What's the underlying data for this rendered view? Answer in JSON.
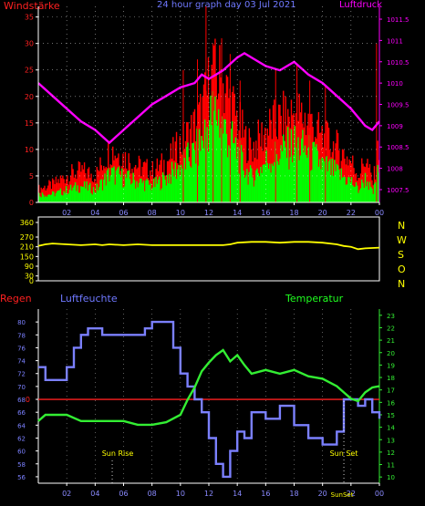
{
  "colors": {
    "wind": "#ff0000",
    "gust_bg": "#ff0000",
    "wind_avg": "#00ff00",
    "pressure": "#ff00ff",
    "direction": "#ffff00",
    "humidity": "#7b80ff",
    "temperature": "#33ee33",
    "rain": "#ff2020",
    "axis": "#ffffff",
    "grid": "#ffffff",
    "label_red": "#ff2020",
    "label_blue": "#6f78ff",
    "label_yellow": "#ffff00"
  },
  "header": {
    "left_title": "Windstärke",
    "center_title": "24 hour graph day  03 Jul 2021",
    "right_title": "Luftdruck"
  },
  "x_ticks": [
    "02",
    "04",
    "06",
    "08",
    "10",
    "12",
    "14",
    "16",
    "18",
    "20",
    "22",
    "00"
  ],
  "chart_data": [
    {
      "type": "bar",
      "name": "wind-pressure",
      "x_range": [
        0,
        24
      ],
      "ylim_left": [
        0,
        37
      ],
      "ylim_right": [
        1007.2,
        1011.8
      ],
      "left_ticks": [
        0,
        5,
        10,
        15,
        20,
        25,
        30,
        35
      ],
      "right_ticks": [
        1007.5,
        1008,
        1008.5,
        1009,
        1009.5,
        1010,
        1010.5,
        1011,
        1011.5
      ],
      "wind_gust_envelope": {
        "x": [
          0,
          1,
          2,
          3,
          4,
          4.5,
          5,
          6,
          7,
          8,
          9,
          10,
          11,
          11.5,
          12,
          12.5,
          13,
          13.5,
          14,
          14.5,
          15,
          16,
          17,
          18,
          19,
          20,
          21,
          22,
          22.5,
          23,
          23.5,
          24
        ],
        "y": [
          3,
          4,
          6,
          7,
          6,
          9,
          12,
          10,
          8,
          7,
          9,
          13,
          17,
          20,
          26,
          28,
          26,
          22,
          18,
          14,
          12,
          16,
          18,
          20,
          18,
          14,
          12,
          9,
          6,
          10,
          4,
          14
        ]
      },
      "wind_avg_envelope": {
        "x": [
          0,
          1,
          2,
          3,
          4,
          4.5,
          5,
          6,
          7,
          8,
          9,
          10,
          11,
          11.5,
          12,
          12.5,
          13,
          13.5,
          14,
          14.5,
          15,
          16,
          17,
          18,
          19,
          20,
          21,
          22,
          22.5,
          23,
          23.5,
          24
        ],
        "y": [
          2,
          2,
          3,
          4,
          3,
          5,
          7,
          6,
          5,
          4,
          6,
          9,
          12,
          15,
          20,
          22,
          18,
          15,
          12,
          8,
          6,
          10,
          12,
          14,
          12,
          9,
          7,
          5,
          3,
          6,
          2,
          9
        ]
      },
      "wind_spikes": [
        {
          "x": 10.2,
          "y": 25
        },
        {
          "x": 11.2,
          "y": 27
        },
        {
          "x": 11.8,
          "y": 37
        },
        {
          "x": 12.3,
          "y": 30
        },
        {
          "x": 12.9,
          "y": 31
        },
        {
          "x": 13.5,
          "y": 28
        },
        {
          "x": 14.2,
          "y": 23
        },
        {
          "x": 16.7,
          "y": 25
        },
        {
          "x": 18.2,
          "y": 26
        },
        {
          "x": 19.1,
          "y": 23
        },
        {
          "x": 20.2,
          "y": 22
        },
        {
          "x": 23.8,
          "y": 30
        }
      ],
      "pressure": {
        "x": [
          0,
          1,
          2,
          3,
          4,
          5,
          6,
          7,
          8,
          9,
          10,
          11,
          11.5,
          12,
          13,
          14,
          14.5,
          15,
          16,
          17,
          18,
          19,
          20,
          21,
          22,
          23,
          23.5,
          24
        ],
        "y": [
          1010,
          1009.7,
          1009.4,
          1009.1,
          1008.9,
          1008.6,
          1008.9,
          1009.2,
          1009.5,
          1009.7,
          1009.9,
          1010.0,
          1010.2,
          1010.1,
          1010.3,
          1010.6,
          1010.7,
          1010.6,
          1010.4,
          1010.3,
          1010.5,
          1010.2,
          1010,
          1009.7,
          1009.4,
          1009.0,
          1008.9,
          1009.1
        ]
      }
    },
    {
      "type": "line",
      "name": "wind-direction",
      "ylim": [
        0,
        360
      ],
      "y_ticks": [
        0,
        30,
        90,
        150,
        210,
        270,
        360
      ],
      "right_labels": [
        "N",
        "W",
        "S",
        "O",
        "N"
      ],
      "x": [
        0,
        0.5,
        1,
        2,
        3,
        4,
        4.5,
        5,
        6,
        7,
        8,
        9,
        10,
        11,
        12,
        13,
        13.5,
        14,
        15,
        16,
        17,
        18,
        19,
        20,
        21,
        21.5,
        22,
        22.5,
        23,
        24
      ],
      "y": [
        215,
        225,
        230,
        225,
        220,
        225,
        220,
        225,
        220,
        225,
        220,
        220,
        220,
        220,
        220,
        220,
        225,
        235,
        240,
        240,
        235,
        240,
        240,
        235,
        225,
        215,
        210,
        195,
        200,
        205
      ]
    },
    {
      "type": "line",
      "name": "humidity-temperature",
      "labels": {
        "rain": "Regen",
        "humidity": "Luftfeuchte",
        "temperature": "Temperatur"
      },
      "ylim_left": [
        55,
        82
      ],
      "ylim_right": [
        9.5,
        23.5
      ],
      "left_ticks": [
        56,
        58,
        60,
        62,
        64,
        66,
        68,
        70,
        72,
        74,
        76,
        78,
        80
      ],
      "right_ticks": [
        10,
        11,
        12,
        13,
        14,
        15,
        16,
        17,
        18,
        19,
        20,
        21,
        22,
        23
      ],
      "rain_level_label": "0",
      "rain_level": 68,
      "annotations": [
        {
          "text": "Sun Rise",
          "x": 5.2
        },
        {
          "text": "Sun Set",
          "x": 21.5
        },
        {
          "text": "SunSet",
          "x": 21.3
        }
      ],
      "humidity": {
        "x": [
          0,
          0.5,
          1,
          2,
          2.5,
          3,
          3.5,
          4,
          4.5,
          5,
          6,
          7,
          7.5,
          8,
          9,
          9.5,
          10,
          10.5,
          11,
          11.5,
          12,
          12.5,
          13,
          13.5,
          14,
          14.5,
          15,
          16,
          17,
          18,
          19,
          20,
          21,
          21.5,
          22,
          22.5,
          23,
          23.5,
          24
        ],
        "y": [
          73,
          71,
          71,
          73,
          76,
          78,
          79,
          79,
          78,
          78,
          78,
          78,
          79,
          80,
          80,
          76,
          72,
          70,
          68,
          66,
          62,
          58,
          56,
          60,
          63,
          62,
          66,
          65,
          67,
          64,
          62,
          61,
          63,
          68,
          68,
          67,
          68,
          66,
          65
        ]
      },
      "temperature": {
        "x": [
          0,
          0.5,
          1,
          2,
          3,
          4,
          5,
          6,
          7,
          8,
          9,
          10,
          10.5,
          11,
          11.5,
          12,
          12.5,
          13,
          13.5,
          14,
          14.5,
          15,
          16,
          17,
          18,
          19,
          20,
          21,
          21.5,
          22,
          22.5,
          23,
          23.5,
          24
        ],
        "y": [
          14.5,
          15,
          15,
          15,
          14.5,
          14.5,
          14.5,
          14.5,
          14.2,
          14.2,
          14.4,
          15.0,
          16.2,
          17.2,
          18.5,
          19.2,
          19.8,
          20.2,
          19.3,
          19.8,
          19.0,
          18.3,
          18.6,
          18.3,
          18.6,
          18.1,
          17.9,
          17.3,
          16.8,
          16.3,
          16.1,
          16.8,
          17.2,
          17.3
        ]
      }
    }
  ]
}
